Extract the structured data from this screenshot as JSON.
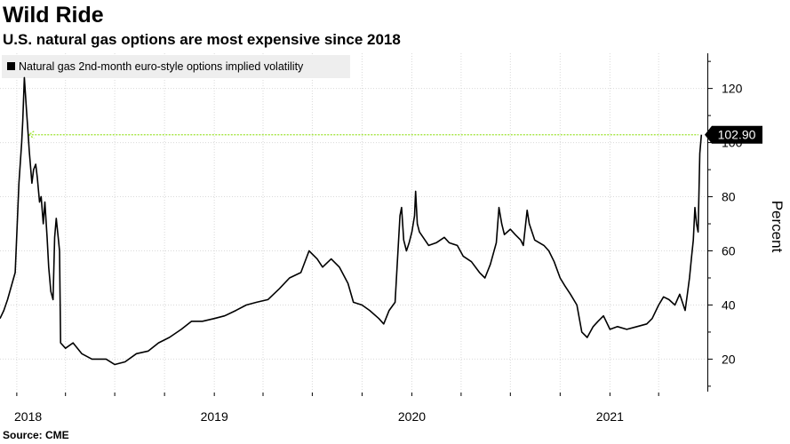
{
  "header": {
    "title": "Wild Ride",
    "subtitle": "U.S. natural gas options are most expensive since 2018"
  },
  "footer": {
    "source": "Source: CME"
  },
  "colors": {
    "line": "#000000",
    "reference": "#9be22d",
    "callout_bg": "#000000",
    "grid": "#d9d9d9",
    "legend_bg": "#eeeeee"
  },
  "chart_data": {
    "type": "line",
    "title": "Wild Ride",
    "subtitle": "U.S. natural gas options are most expensive since 2018",
    "xlabel": "",
    "ylabel": "Percent",
    "ylim": [
      8,
      133
    ],
    "xlim": [
      "2017-12-01",
      "2021-06-30"
    ],
    "yticks": [
      20,
      40,
      60,
      80,
      100,
      120
    ],
    "xticks": [
      {
        "label": "2018",
        "date": "2018-01-01"
      },
      {
        "label": "2019",
        "date": "2019-01-01"
      },
      {
        "label": "2020",
        "date": "2020-01-01"
      },
      {
        "label": "2021",
        "date": "2021-01-01"
      }
    ],
    "grid": true,
    "legend": {
      "position": "top-left",
      "entries": [
        "Natural gas 2nd-month euro-style options implied volatility"
      ]
    },
    "annotation": {
      "label": "102.90",
      "value": 102.9,
      "reference_start": "2018-01-23"
    },
    "series": [
      {
        "name": "Natural gas 2nd-month euro-style options implied volatility",
        "points": [
          [
            "2017-12-01",
            35
          ],
          [
            "2017-12-08",
            38
          ],
          [
            "2017-12-15",
            42
          ],
          [
            "2017-12-22",
            47
          ],
          [
            "2017-12-29",
            52
          ],
          [
            "2018-01-05",
            85
          ],
          [
            "2018-01-10",
            100
          ],
          [
            "2018-01-12",
            108
          ],
          [
            "2018-01-15",
            124
          ],
          [
            "2018-01-17",
            118
          ],
          [
            "2018-01-19",
            112
          ],
          [
            "2018-01-22",
            103
          ],
          [
            "2018-01-24",
            97
          ],
          [
            "2018-01-29",
            85
          ],
          [
            "2018-02-01",
            90
          ],
          [
            "2018-02-05",
            92
          ],
          [
            "2018-02-08",
            87
          ],
          [
            "2018-02-12",
            78
          ],
          [
            "2018-02-15",
            80
          ],
          [
            "2018-02-19",
            70
          ],
          [
            "2018-02-22",
            78
          ],
          [
            "2018-02-26",
            65
          ],
          [
            "2018-03-01",
            54
          ],
          [
            "2018-03-05",
            45
          ],
          [
            "2018-03-09",
            42
          ],
          [
            "2018-03-12",
            65
          ],
          [
            "2018-03-15",
            72
          ],
          [
            "2018-03-19",
            64
          ],
          [
            "2018-03-21",
            60
          ],
          [
            "2018-03-23",
            26
          ],
          [
            "2018-04-01",
            24
          ],
          [
            "2018-04-15",
            26
          ],
          [
            "2018-05-01",
            22
          ],
          [
            "2018-05-20",
            20
          ],
          [
            "2018-06-15",
            20
          ],
          [
            "2018-07-01",
            18
          ],
          [
            "2018-07-20",
            19
          ],
          [
            "2018-08-10",
            22
          ],
          [
            "2018-09-01",
            23
          ],
          [
            "2018-09-20",
            26
          ],
          [
            "2018-10-10",
            28
          ],
          [
            "2018-11-01",
            31
          ],
          [
            "2018-11-20",
            34
          ],
          [
            "2018-12-10",
            34
          ],
          [
            "2019-01-01",
            35
          ],
          [
            "2019-01-20",
            36
          ],
          [
            "2019-02-10",
            38
          ],
          [
            "2019-03-01",
            40
          ],
          [
            "2019-03-20",
            41
          ],
          [
            "2019-04-10",
            42
          ],
          [
            "2019-05-01",
            46
          ],
          [
            "2019-05-20",
            50
          ],
          [
            "2019-06-10",
            52
          ],
          [
            "2019-06-25",
            60
          ],
          [
            "2019-07-10",
            57
          ],
          [
            "2019-07-20",
            54
          ],
          [
            "2019-08-05",
            57
          ],
          [
            "2019-08-20",
            54
          ],
          [
            "2019-09-05",
            48
          ],
          [
            "2019-09-15",
            41
          ],
          [
            "2019-10-01",
            40
          ],
          [
            "2019-10-15",
            38
          ],
          [
            "2019-11-01",
            35
          ],
          [
            "2019-11-10",
            33
          ],
          [
            "2019-11-20",
            38
          ],
          [
            "2019-12-01",
            41
          ],
          [
            "2019-12-05",
            55
          ],
          [
            "2019-12-10",
            73
          ],
          [
            "2019-12-13",
            76
          ],
          [
            "2019-12-17",
            64
          ],
          [
            "2019-12-22",
            60
          ],
          [
            "2019-12-27",
            63
          ],
          [
            "2020-01-01",
            67
          ],
          [
            "2020-01-06",
            73
          ],
          [
            "2020-01-08",
            82
          ],
          [
            "2020-01-11",
            70
          ],
          [
            "2020-01-15",
            67
          ],
          [
            "2020-02-01",
            62
          ],
          [
            "2020-02-15",
            63
          ],
          [
            "2020-03-01",
            65
          ],
          [
            "2020-03-10",
            63
          ],
          [
            "2020-03-25",
            62
          ],
          [
            "2020-04-05",
            58
          ],
          [
            "2020-04-20",
            56
          ],
          [
            "2020-05-05",
            52
          ],
          [
            "2020-05-15",
            50
          ],
          [
            "2020-05-25",
            55
          ],
          [
            "2020-06-05",
            63
          ],
          [
            "2020-06-10",
            76
          ],
          [
            "2020-06-15",
            70
          ],
          [
            "2020-06-20",
            66
          ],
          [
            "2020-07-01",
            68
          ],
          [
            "2020-07-10",
            66
          ],
          [
            "2020-07-20",
            64
          ],
          [
            "2020-07-25",
            62
          ],
          [
            "2020-08-01",
            75
          ],
          [
            "2020-08-05",
            70
          ],
          [
            "2020-08-15",
            64
          ],
          [
            "2020-09-01",
            62
          ],
          [
            "2020-09-10",
            60
          ],
          [
            "2020-09-20",
            56
          ],
          [
            "2020-10-01",
            50
          ],
          [
            "2020-10-10",
            47
          ],
          [
            "2020-10-20",
            44
          ],
          [
            "2020-11-01",
            40
          ],
          [
            "2020-11-10",
            30
          ],
          [
            "2020-11-20",
            28
          ],
          [
            "2020-12-01",
            32
          ],
          [
            "2020-12-10",
            34
          ],
          [
            "2020-12-20",
            36
          ],
          [
            "2021-01-01",
            31
          ],
          [
            "2021-01-15",
            32
          ],
          [
            "2021-02-01",
            31
          ],
          [
            "2021-02-20",
            32
          ],
          [
            "2021-03-10",
            33
          ],
          [
            "2021-03-20",
            35
          ],
          [
            "2021-04-01",
            40
          ],
          [
            "2021-04-10",
            43
          ],
          [
            "2021-04-20",
            42
          ],
          [
            "2021-05-01",
            40
          ],
          [
            "2021-05-10",
            44
          ],
          [
            "2021-05-20",
            38
          ],
          [
            "2021-05-24",
            44
          ],
          [
            "2021-05-28",
            50
          ],
          [
            "2021-06-01",
            58
          ],
          [
            "2021-06-04",
            64
          ],
          [
            "2021-06-07",
            76
          ],
          [
            "2021-06-10",
            70
          ],
          [
            "2021-06-13",
            67
          ],
          [
            "2021-06-16",
            96
          ],
          [
            "2021-06-19",
            102.9
          ]
        ]
      }
    ]
  }
}
